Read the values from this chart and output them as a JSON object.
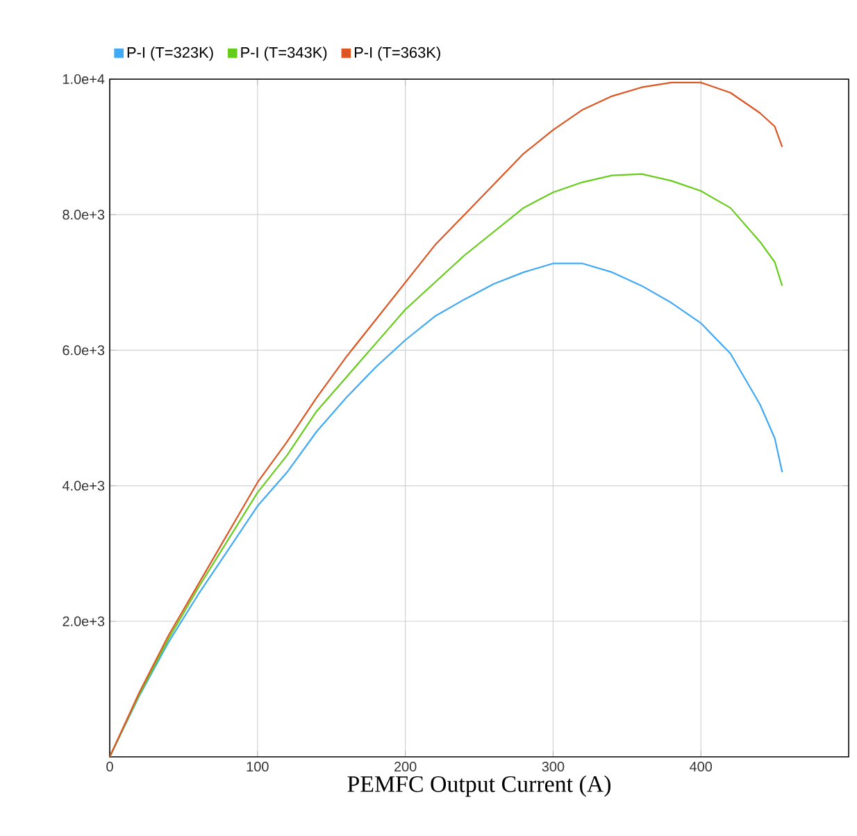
{
  "chart_data": {
    "type": "line",
    "xlabel": "PEMFC Output Current (A)",
    "xlim": [
      0,
      500
    ],
    "ylim": [
      0,
      10000
    ],
    "xticks": [
      0,
      100,
      200,
      300,
      400
    ],
    "yticks": [
      {
        "value": 2000,
        "label": "2.0e+3"
      },
      {
        "value": 4000,
        "label": "4.0e+3"
      },
      {
        "value": 6000,
        "label": "6.0e+3"
      },
      {
        "value": 8000,
        "label": "8.0e+3"
      },
      {
        "value": 10000,
        "label": "1.0e+4"
      }
    ],
    "grid": true,
    "legend": "top",
    "marker": "none",
    "line_style": "solid",
    "x": [
      0,
      20,
      40,
      60,
      80,
      100,
      120,
      140,
      160,
      180,
      200,
      220,
      240,
      260,
      280,
      300,
      320,
      340,
      360,
      380,
      400,
      420,
      440,
      450,
      455
    ],
    "series": [
      {
        "name": "P-I (T=323K)",
        "color": "#3fa9f5",
        "values": [
          0,
          900,
          1700,
          2400,
          3050,
          3700,
          4200,
          4800,
          5300,
          5750,
          6150,
          6500,
          6750,
          6980,
          7150,
          7280,
          7280,
          7150,
          6950,
          6700,
          6400,
          5950,
          5200,
          4700,
          4200
        ]
      },
      {
        "name": "P-I (T=343K)",
        "color": "#66cc1a",
        "values": [
          0,
          920,
          1750,
          2500,
          3200,
          3900,
          4450,
          5100,
          5600,
          6100,
          6600,
          7000,
          7400,
          7750,
          8100,
          8330,
          8480,
          8580,
          8600,
          8500,
          8350,
          8100,
          7600,
          7300,
          6950
        ]
      },
      {
        "name": "P-I (T=363K)",
        "color": "#dd5522",
        "values": [
          0,
          950,
          1800,
          2550,
          3300,
          4050,
          4650,
          5300,
          5900,
          6450,
          7000,
          7550,
          8000,
          8450,
          8900,
          9250,
          9550,
          9750,
          9880,
          9950,
          9950,
          9800,
          9500,
          9300,
          9000
        ]
      }
    ]
  }
}
